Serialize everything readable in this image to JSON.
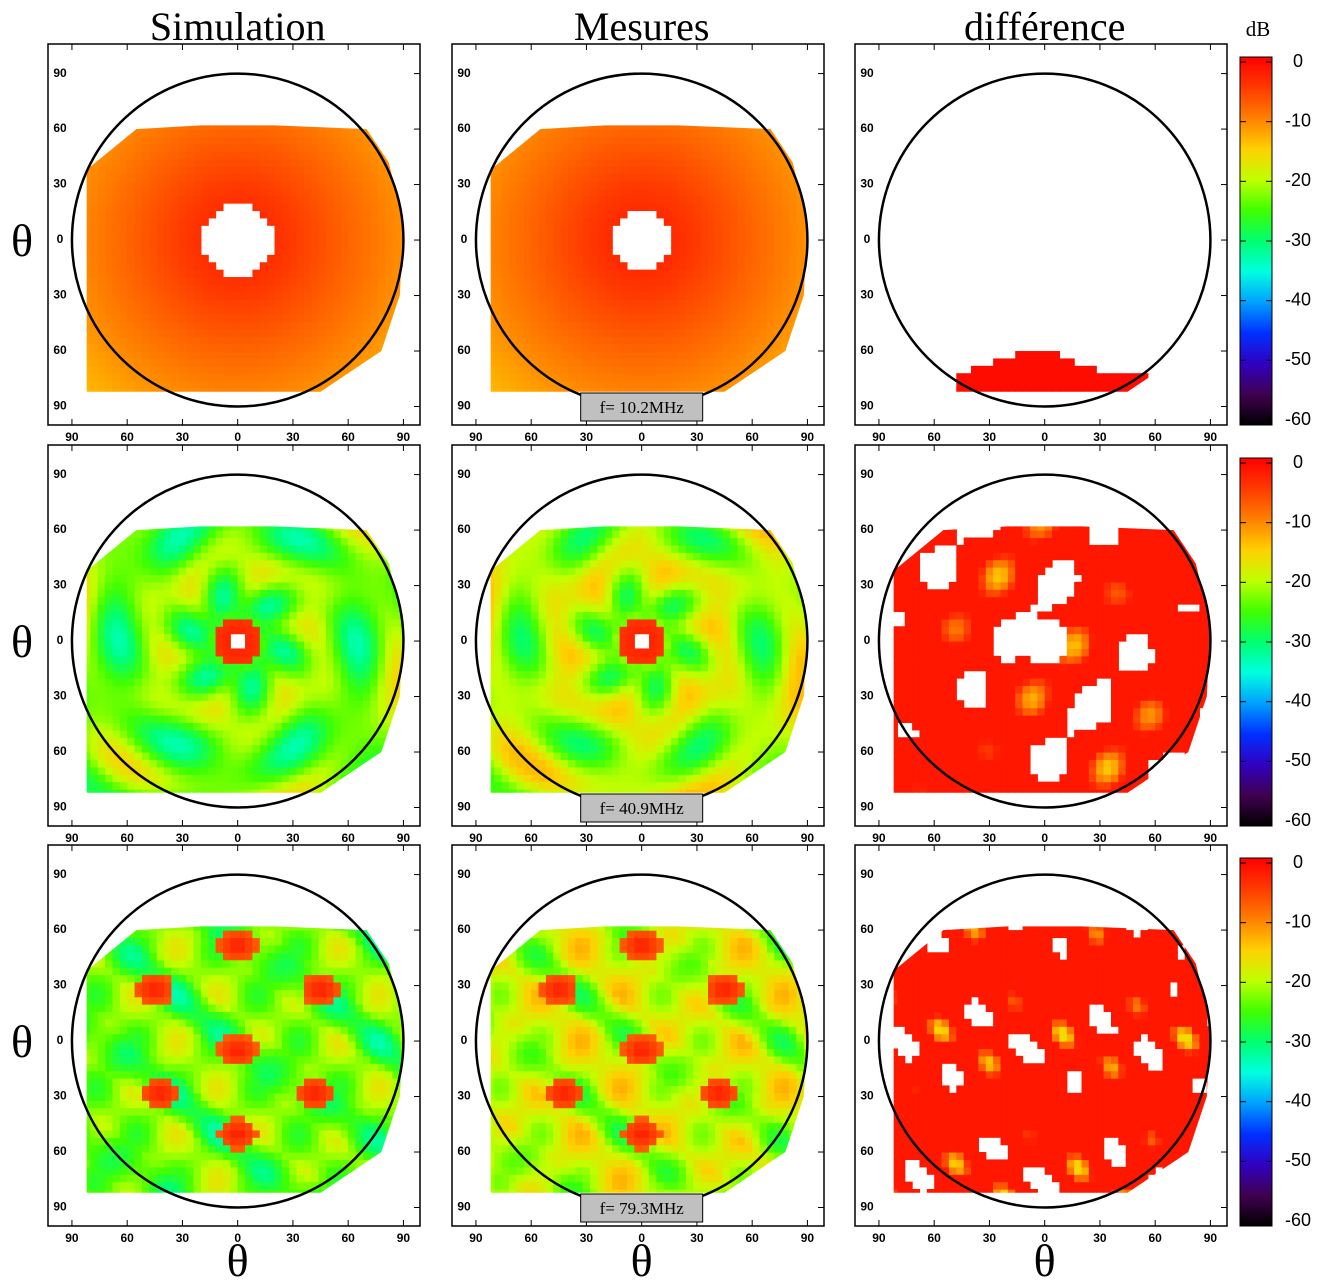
{
  "chart_data": {
    "type": "contour",
    "column_titles": [
      "Simulation",
      "Mesures",
      "différence"
    ],
    "frequencies": [
      "f= 10.2MHz",
      "f= 40.9MHz",
      "f= 79.3MHz"
    ],
    "axis_label": "θ",
    "xlim": [
      -103,
      99
    ],
    "ylim": [
      -100,
      106
    ],
    "xticks": [
      {
        "value": -90,
        "label": "90"
      },
      {
        "value": -60,
        "label": "60"
      },
      {
        "value": -30,
        "label": "30"
      },
      0,
      30,
      60,
      90
    ],
    "yticks": [
      90,
      60,
      30,
      0,
      {
        "value": -30,
        "label": "30"
      },
      {
        "value": -60,
        "label": "60"
      },
      {
        "value": -90,
        "label": "90"
      }
    ],
    "colorbar": {
      "label": "dB",
      "lim": [
        -60,
        0
      ],
      "ticks": [
        0,
        -10,
        -20,
        -30,
        -40,
        -50,
        -60
      ]
    }
  }
}
